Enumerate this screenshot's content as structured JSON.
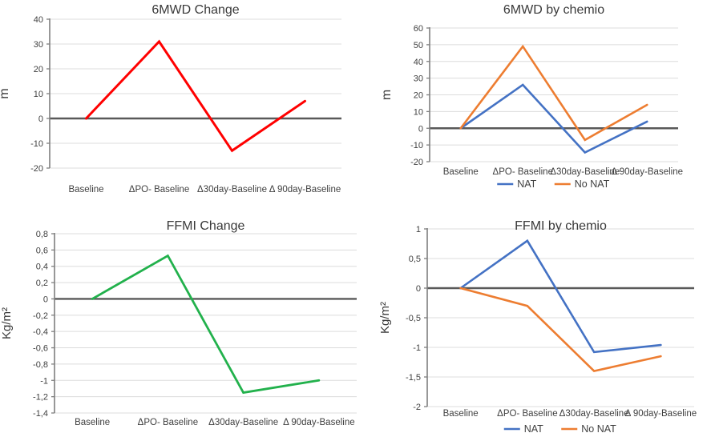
{
  "figure": {
    "description": "2x2 grid of line charts comparing 6MWD and FFMI changes over time points",
    "colors": {
      "grid": "#dcdcdc",
      "axis": "#7f7f7f",
      "zero_line": "#595959",
      "tick_text": "#404040",
      "title_text": "#3a3a3a",
      "red": "#ff0000",
      "green": "#22b14c",
      "nat_blue": "#4472c4",
      "no_nat_orange": "#ed7d31"
    }
  },
  "chart_data": [
    {
      "id": "6mwd-change",
      "type": "line",
      "title": "6MWD Change",
      "ylabel": "m",
      "categories": [
        "Baseline",
        "ΔPO- Baseline",
        "Δ30day-Baseline",
        "Δ 90day-Baseline"
      ],
      "ylim": [
        -20,
        40
      ],
      "yticks": [
        40,
        30,
        20,
        10,
        0,
        -10,
        -20
      ],
      "ytick_labels": [
        "40",
        "30",
        "20",
        "10",
        "0",
        "-10",
        "-20"
      ],
      "grid": true,
      "zero_line": true,
      "legend_position": "none",
      "series": [
        {
          "color": "#ff0000",
          "width": 3,
          "values": [
            0,
            31,
            -13,
            7
          ]
        }
      ]
    },
    {
      "id": "6mwd-by-chemio",
      "type": "line",
      "title": "6MWD by chemio",
      "ylabel": "m",
      "categories": [
        "Baseline",
        "ΔPO- Baseline",
        "Δ30day-Baseline",
        "Δ 90day-Baseline"
      ],
      "ylim": [
        -20,
        60
      ],
      "yticks": [
        60,
        50,
        40,
        30,
        20,
        10,
        0,
        -10,
        -20
      ],
      "ytick_labels": [
        "60",
        "50",
        "40",
        "30",
        "20",
        "10",
        "0",
        "-10",
        "-20"
      ],
      "grid": true,
      "zero_line": true,
      "legend_position": "bottom",
      "series": [
        {
          "name": "NAT",
          "color": "#4472c4",
          "width": 2.6,
          "values": [
            0,
            26,
            -14.5,
            4
          ]
        },
        {
          "name": "No NAT",
          "color": "#ed7d31",
          "width": 2.6,
          "values": [
            0,
            49,
            -7,
            14
          ]
        }
      ]
    },
    {
      "id": "ffmi-change",
      "type": "line",
      "title": "FFMI Change",
      "ylabel": "Kg/m²",
      "categories": [
        "Baseline",
        "ΔPO- Baseline",
        "Δ30day-Baseline",
        "Δ 90day-Baseline"
      ],
      "ylim": [
        -1.4,
        0.8
      ],
      "yticks": [
        0.8,
        0.6,
        0.4,
        0.2,
        0,
        -0.2,
        -0.4,
        -0.6,
        -0.8,
        -1,
        -1.2,
        -1.4
      ],
      "ytick_labels": [
        "0,8",
        "0,6",
        "0,4",
        "0,2",
        "0",
        "-0,2",
        "-0,4",
        "-0,6",
        "-0,8",
        "-1",
        "-1,2",
        "-1,4"
      ],
      "grid": true,
      "zero_line": true,
      "legend_position": "none",
      "series": [
        {
          "color": "#22b14c",
          "width": 2.8,
          "values": [
            0,
            0.53,
            -1.15,
            -1.0
          ]
        }
      ]
    },
    {
      "id": "ffmi-by-chemio",
      "type": "line",
      "title": "FFMI by chemio",
      "ylabel": "Kg/m²",
      "categories": [
        "Baseline",
        "ΔPO- Baseline",
        "Δ30day-Baseline",
        "Δ 90day-Baseline"
      ],
      "ylim": [
        -2,
        1
      ],
      "yticks": [
        1,
        0.5,
        0,
        -0.5,
        -1,
        -1.5,
        -2
      ],
      "ytick_labels": [
        "1",
        "0,5",
        "0",
        "-0,5",
        "-1",
        "-1,5",
        "-2"
      ],
      "grid": true,
      "zero_line": true,
      "legend_position": "bottom",
      "series": [
        {
          "name": "NAT",
          "color": "#4472c4",
          "width": 2.6,
          "values": [
            0,
            0.8,
            -1.08,
            -0.96
          ]
        },
        {
          "name": "No NAT",
          "color": "#ed7d31",
          "width": 2.6,
          "values": [
            0,
            -0.3,
            -1.4,
            -1.15
          ]
        }
      ]
    }
  ]
}
